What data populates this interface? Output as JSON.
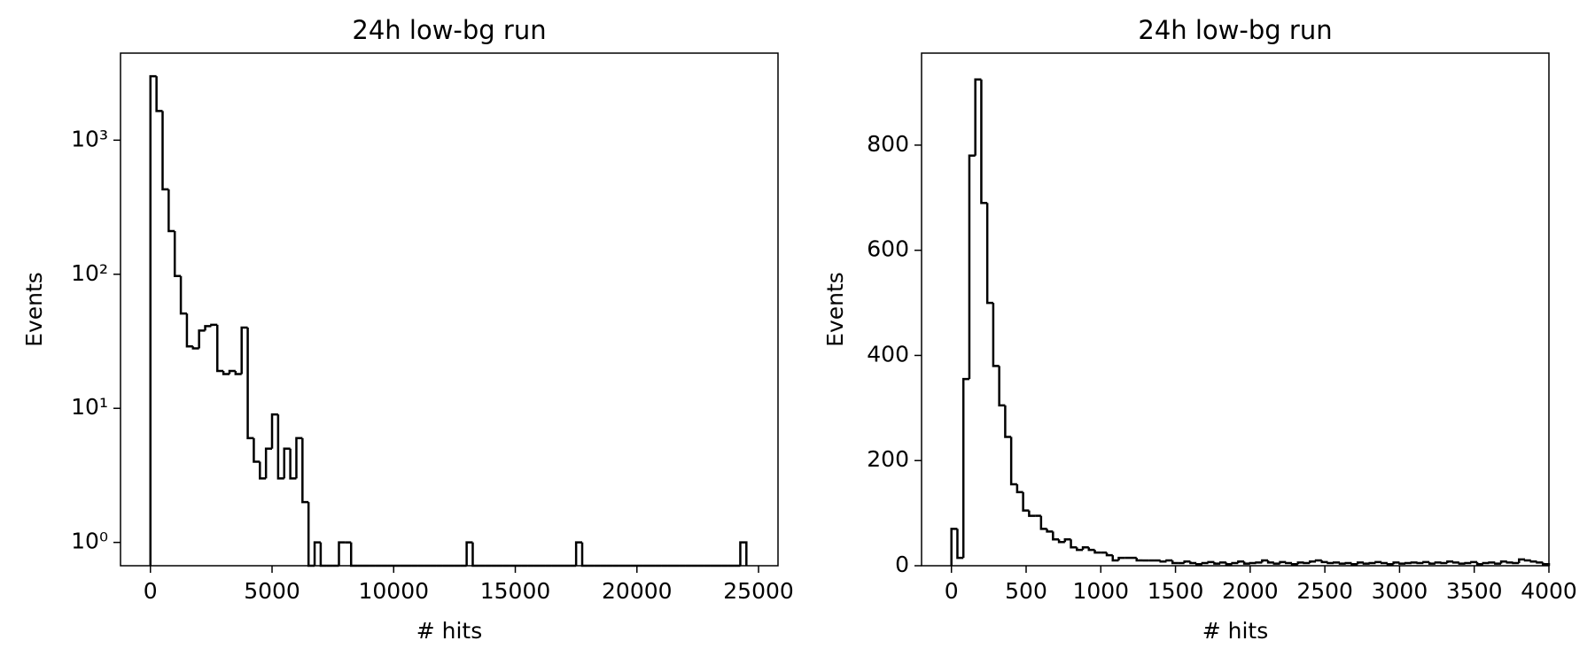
{
  "chart_data": [
    {
      "type": "histogram",
      "title": "24h low-bg run",
      "x_label": "# hits",
      "y_label": "Events",
      "color": "#000000",
      "log_y": true,
      "bins": [
        0,
        250,
        500,
        750,
        1000,
        1250,
        1500,
        1750,
        2000,
        2250,
        2500,
        2750,
        3000,
        3250,
        3500,
        3750,
        4000,
        4250,
        4500,
        4750,
        5000,
        5250,
        5500,
        5750,
        6000,
        6250,
        6500,
        6750,
        7000,
        7250,
        7500,
        7750,
        8000,
        8250,
        8500,
        8750,
        9000,
        9250,
        9500,
        9750,
        10000,
        10250,
        10500,
        10750,
        11000,
        11250,
        11500,
        11750,
        12000,
        12250,
        12500,
        12750,
        13000,
        13250,
        13500,
        13750,
        14000,
        14250,
        14500,
        14750,
        15000,
        15250,
        15500,
        15750,
        16000,
        16250,
        16500,
        16750,
        17000,
        17250,
        17500,
        17750,
        18000,
        18250,
        18500,
        18750,
        19000,
        19250,
        19500,
        19750,
        20000,
        20250,
        20500,
        20750,
        21000,
        21250,
        21500,
        21750,
        22000,
        22250,
        22500,
        22750,
        23000,
        23250,
        23500,
        23750,
        24000,
        24250,
        24500
      ],
      "values": [
        3000,
        1650,
        430,
        210,
        97,
        51,
        29,
        28,
        38,
        41,
        42,
        19,
        18,
        19,
        18,
        40,
        6,
        4,
        3,
        5,
        9,
        3,
        5,
        3,
        6,
        2,
        0,
        1,
        0,
        0,
        0,
        1,
        1,
        0,
        0,
        0,
        0,
        0,
        0,
        0,
        0,
        0,
        0,
        0,
        0,
        0,
        0,
        0,
        0,
        0,
        0,
        0,
        1,
        0,
        0,
        0,
        0,
        0,
        0,
        0,
        0,
        0,
        0,
        0,
        0,
        0,
        0,
        0,
        0,
        0,
        1,
        0,
        0,
        0,
        0,
        0,
        0,
        0,
        0,
        0,
        0,
        0,
        0,
        0,
        0,
        0,
        0,
        0,
        0,
        0,
        0,
        0,
        0,
        0,
        0,
        0,
        0,
        1
      ],
      "xlim": [
        -1230,
        25800
      ],
      "ylim": [
        0.67,
        4460
      ],
      "xticks": [
        0,
        5000,
        10000,
        15000,
        20000,
        25000
      ],
      "yticks": [
        {
          "value": 1,
          "label": "10⁰"
        },
        {
          "value": 10,
          "label": "10¹"
        },
        {
          "value": 100,
          "label": "10²"
        },
        {
          "value": 1000,
          "label": "10³"
        }
      ]
    },
    {
      "type": "histogram",
      "title": "24h low-bg run",
      "x_label": "# hits",
      "y_label": "Events",
      "color": "#000000",
      "log_y": false,
      "bins": [
        0,
        40,
        80,
        120,
        160,
        200,
        240,
        280,
        320,
        360,
        400,
        440,
        480,
        520,
        560,
        600,
        640,
        680,
        720,
        760,
        800,
        840,
        880,
        920,
        960,
        1000,
        1040,
        1080,
        1120,
        1160,
        1200,
        1240,
        1280,
        1320,
        1360,
        1400,
        1440,
        1480,
        1520,
        1560,
        1600,
        1640,
        1680,
        1720,
        1760,
        1800,
        1840,
        1880,
        1920,
        1960,
        2000,
        2040,
        2080,
        2120,
        2160,
        2200,
        2240,
        2280,
        2320,
        2360,
        2400,
        2440,
        2480,
        2520,
        2560,
        2600,
        2640,
        2680,
        2720,
        2760,
        2800,
        2840,
        2880,
        2920,
        2960,
        3000,
        3040,
        3080,
        3120,
        3160,
        3200,
        3240,
        3280,
        3320,
        3360,
        3400,
        3440,
        3480,
        3520,
        3560,
        3600,
        3640,
        3680,
        3720,
        3760,
        3800,
        3840,
        3880,
        3920,
        3960,
        4000
      ],
      "values": [
        70,
        15,
        355,
        780,
        925,
        690,
        500,
        380,
        305,
        245,
        155,
        140,
        105,
        95,
        95,
        70,
        65,
        50,
        45,
        50,
        35,
        30,
        35,
        30,
        25,
        25,
        20,
        10,
        15,
        15,
        15,
        10,
        10,
        10,
        10,
        8,
        10,
        5,
        5,
        8,
        5,
        3,
        5,
        7,
        4,
        6,
        3,
        5,
        8,
        4,
        5,
        6,
        10,
        6,
        4,
        7,
        5,
        3,
        6,
        5,
        8,
        10,
        7,
        5,
        6,
        4,
        5,
        3,
        6,
        4,
        5,
        7,
        5,
        3,
        6,
        4,
        5,
        6,
        5,
        7,
        4,
        6,
        5,
        8,
        6,
        4,
        5,
        7,
        3,
        5,
        6,
        4,
        8,
        6,
        5,
        12,
        10,
        8,
        6,
        3
      ],
      "xlim": [
        -200,
        4000
      ],
      "ylim": [
        0,
        975
      ],
      "xticks": [
        0,
        500,
        1000,
        1500,
        2000,
        2500,
        3000,
        3500,
        4000
      ],
      "yticks": [
        0,
        200,
        400,
        600,
        800
      ]
    }
  ]
}
